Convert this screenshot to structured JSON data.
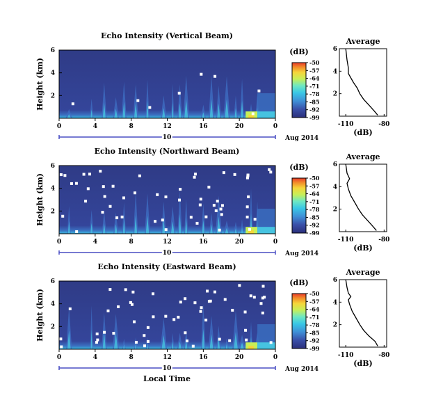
{
  "chart_data": {
    "type": "heatmap",
    "date_label": "Aug 2014",
    "day_label": "10",
    "xlabel": "Local Time",
    "x_ticks": [
      "0",
      "4",
      "8",
      "12",
      "16",
      "20",
      "0"
    ],
    "xlim": [
      0,
      24
    ],
    "ylim": [
      0,
      6
    ],
    "colorbar": {
      "unit": "(dB)",
      "ticks": [
        "-50",
        "-57",
        "-64",
        "-71",
        "-78",
        "-85",
        "-92",
        "-99"
      ],
      "range": [
        -99,
        -50
      ]
    },
    "panels": [
      {
        "title": "Echo Intensity (Vertical Beam)",
        "ylabel": "Height (km)",
        "y_ticks": [
          "6",
          "4",
          "2"
        ],
        "avg_title": "Average",
        "avg_ylabel": "(dB)",
        "avg_x_ticks": [
          "-110",
          "-80"
        ],
        "avg_y_ticks": [
          "6",
          "4",
          "2"
        ],
        "avg_profile": [
          [
            -85,
            0.1
          ],
          [
            -88,
            0.5
          ],
          [
            -92,
            1.0
          ],
          [
            -96,
            1.5
          ],
          [
            -99,
            2.0
          ],
          [
            -101,
            2.5
          ],
          [
            -104,
            3.0
          ],
          [
            -106,
            3.4
          ],
          [
            -108,
            3.8
          ],
          [
            -108,
            4.3
          ],
          [
            -109,
            5.0
          ],
          [
            -110,
            6.0
          ]
        ]
      },
      {
        "title": "Echo Intensity (Northward Beam)",
        "ylabel": "Height (km)",
        "y_ticks": [
          "6",
          "4",
          "2"
        ],
        "avg_title": "Average",
        "avg_ylabel": "(dB)",
        "avg_x_ticks": [
          "-110",
          "-80"
        ],
        "avg_y_ticks": [
          "6",
          "4",
          "2"
        ],
        "avg_profile": [
          [
            -86,
            0.1
          ],
          [
            -89,
            0.5
          ],
          [
            -93,
            1.0
          ],
          [
            -97,
            1.5
          ],
          [
            -100,
            2.0
          ],
          [
            -103,
            2.6
          ],
          [
            -106,
            3.2
          ],
          [
            -108,
            3.8
          ],
          [
            -109,
            4.3
          ],
          [
            -107,
            4.7
          ],
          [
            -109,
            5.2
          ],
          [
            -110,
            6.0
          ]
        ]
      },
      {
        "title": "Echo Intensity (Eastward Beam)",
        "ylabel": "Height (km)",
        "y_ticks": [
          "6",
          "4",
          "2"
        ],
        "avg_title": "Average",
        "avg_ylabel": "(dB)",
        "avg_x_ticks": [
          "-110",
          "-80"
        ],
        "avg_y_ticks": [
          "6",
          "4",
          "2"
        ],
        "avg_profile": [
          [
            -85,
            0.1
          ],
          [
            -87,
            0.5
          ],
          [
            -92,
            1.0
          ],
          [
            -96,
            1.5
          ],
          [
            -99,
            2.0
          ],
          [
            -102,
            2.6
          ],
          [
            -105,
            3.2
          ],
          [
            -107,
            3.8
          ],
          [
            -108,
            4.2
          ],
          [
            -106,
            4.5
          ],
          [
            -108,
            4.8
          ],
          [
            -109,
            5.3
          ],
          [
            -110,
            6.0
          ]
        ]
      }
    ]
  }
}
